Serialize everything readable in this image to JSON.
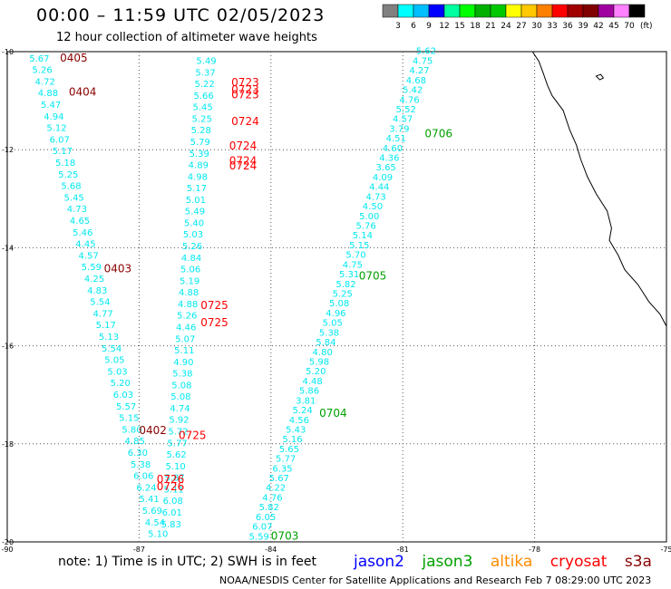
{
  "title": "00:00 – 11:59 UTC 02/05/2023",
  "subtitle": "12 hour collection of altimeter wave heights",
  "colorbar": {
    "unit": "(ft)",
    "ticks": [
      "3",
      "6",
      "9",
      "12",
      "15",
      "18",
      "21",
      "24",
      "27",
      "30",
      "33",
      "36",
      "39",
      "42",
      "45",
      "70"
    ],
    "colors": [
      "#808080",
      "#00ffff",
      "#00bfff",
      "#0000ff",
      "#00ffa0",
      "#00ff00",
      "#00b000",
      "#00c800",
      "#ffff00",
      "#ffc800",
      "#ff8000",
      "#ff0000",
      "#a00000",
      "#800000",
      "#a000a0",
      "#ff80ff",
      "#000000"
    ]
  },
  "axes": {
    "lon_labels": [
      "-90",
      "-87",
      "-84",
      "-81",
      "-78",
      "-75"
    ],
    "lat_labels": [
      "-10",
      "-12",
      "-14",
      "-16",
      "-18",
      "-20"
    ],
    "lon_range": [
      -90,
      -75
    ],
    "lat_range": [
      -20,
      -10
    ]
  },
  "colors": {
    "wave": "#00e8f0",
    "jason2": "#0000ff",
    "jason3": "#00a000",
    "altika": "#ff8c00",
    "cryosat": "#ff0000",
    "s3a": "#8b0000",
    "coast": "#000000",
    "grid": "#555555"
  },
  "tracks": [
    {
      "id": "t1",
      "values": [
        "5.67",
        "5.26",
        "4.72",
        "4.88",
        "5.47",
        "4.94",
        "5.12",
        "6.07",
        "5.17",
        "5.18",
        "5.25",
        "5.68",
        "5.45",
        "4.73",
        "4.65",
        "5.46",
        "4.45",
        "4.57",
        "5.59",
        "4.25",
        "4.83",
        "5.54",
        "4.77",
        "5.17",
        "5.13",
        "5.54",
        "5.05",
        "5.03",
        "5.20",
        "6.03",
        "5.57",
        "5.15",
        "5.80",
        "4.85",
        "6.30",
        "5.38",
        "6.06",
        "6.24",
        "5.41",
        "5.69",
        "4.54",
        "5.10"
      ],
      "lon_start": -89.5,
      "lat_start": -10.2,
      "lon_end": -86.8,
      "lat_end": -19.9
    },
    {
      "id": "t2",
      "values": [
        "5.49",
        "5.37",
        "5.22",
        "5.66",
        "5.45",
        "5.25",
        "5.28",
        "5.79",
        "5.39",
        "4.89",
        "4.98",
        "5.17",
        "5.01",
        "5.49",
        "5.40",
        "5.03",
        "5.26",
        "4.84",
        "5.06",
        "5.19",
        "4.88",
        "4.88",
        "5.26",
        "4.46",
        "5.07",
        "5.11",
        "4.90",
        "5.38",
        "5.08",
        "5.08",
        "4.74",
        "5.92",
        "5.72",
        "5.77",
        "5.62",
        "5.10",
        "5.87",
        "5.11",
        "6.08",
        "6.01",
        "5.83"
      ],
      "lon_start": -85.7,
      "lat_start": -10.25,
      "lon_end": -86.5,
      "lat_end": -19.7
    },
    {
      "id": "t3",
      "values": [
        "5.62",
        "4.75",
        "4.27",
        "4.68",
        "5.42",
        "4.76",
        "5.52",
        "4.57",
        "3.79",
        "4.51",
        "4.60",
        "4.36",
        "3.65",
        "4.09",
        "4.44",
        "4.73",
        "4.50",
        "5.00",
        "5.76",
        "5.14",
        "5.15",
        "5.70",
        "4.75",
        "5.31",
        "5.82",
        "5.25",
        "5.08",
        "4.96",
        "5.05",
        "5.38",
        "5.84",
        "4.80",
        "5.98",
        "5.20",
        "4.48",
        "5.86",
        "3.81",
        "5.24",
        "4.56",
        "5.43",
        "5.16",
        "5.65",
        "5.77",
        "6.35",
        "5.67",
        "4.22",
        "4.76",
        "5.82",
        "6.05",
        "6.07",
        "5.59"
      ],
      "lon_start": -80.7,
      "lat_start": -10.05,
      "lon_end": -84.5,
      "lat_end": -19.95
    }
  ],
  "time_labels": [
    {
      "text": "0405",
      "sat": "s3a",
      "lon": -88.8,
      "lat": -10.2
    },
    {
      "text": "0404",
      "sat": "s3a",
      "lon": -88.6,
      "lat": -10.9
    },
    {
      "text": "0403",
      "sat": "s3a",
      "lon": -87.8,
      "lat": -14.5
    },
    {
      "text": "0402",
      "sat": "s3a",
      "lon": -87.0,
      "lat": -17.8
    },
    {
      "text": "0723",
      "sat": "cryosat",
      "lon": -84.9,
      "lat": -10.7
    },
    {
      "text": "0723",
      "sat": "cryosat",
      "lon": -84.9,
      "lat": -10.85
    },
    {
      "text": "0723",
      "sat": "cryosat",
      "lon": -84.9,
      "lat": -10.95
    },
    {
      "text": "0724",
      "sat": "cryosat",
      "lon": -84.9,
      "lat": -11.5
    },
    {
      "text": "0724",
      "sat": "cryosat",
      "lon": -84.95,
      "lat": -12.0
    },
    {
      "text": "0724",
      "sat": "cryosat",
      "lon": -84.95,
      "lat": -12.3
    },
    {
      "text": "0724",
      "sat": "cryosat",
      "lon": -84.95,
      "lat": -12.4
    },
    {
      "text": "0725",
      "sat": "cryosat",
      "lon": -85.6,
      "lat": -15.25
    },
    {
      "text": "0725",
      "sat": "cryosat",
      "lon": -85.6,
      "lat": -15.6
    },
    {
      "text": "0725",
      "sat": "cryosat",
      "lon": -86.1,
      "lat": -17.9
    },
    {
      "text": "0726",
      "sat": "cryosat",
      "lon": -86.6,
      "lat": -18.8
    },
    {
      "text": "0726",
      "sat": "cryosat",
      "lon": -86.6,
      "lat": -18.95
    },
    {
      "text": "0706",
      "sat": "jason3",
      "lon": -80.5,
      "lat": -11.75
    },
    {
      "text": "0705",
      "sat": "jason3",
      "lon": -82.0,
      "lat": -14.65
    },
    {
      "text": "0704",
      "sat": "jason3",
      "lon": -82.9,
      "lat": -17.45
    },
    {
      "text": "0703",
      "sat": "jason3",
      "lon": -84.0,
      "lat": -19.95
    }
  ],
  "note": "note:  1) Time is in UTC; 2) SWH is in feet",
  "legend": [
    {
      "label": "jason2",
      "sat": "jason2"
    },
    {
      "label": "jason3",
      "sat": "jason3"
    },
    {
      "label": "altika",
      "sat": "altika"
    },
    {
      "label": "cryosat",
      "sat": "cryosat"
    },
    {
      "label": "s3a",
      "sat": "s3a"
    }
  ],
  "credit": "NOAA/NESDIS Center for Satellite Applications and Research    Feb  7 08:29:00 UTC 2023"
}
